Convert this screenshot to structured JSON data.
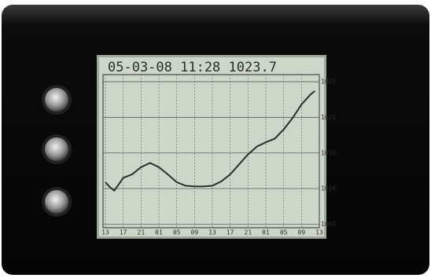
{
  "chart_data": {
    "type": "line",
    "title": "05-03-08 11:28 1023.7",
    "x": [
      0,
      1,
      2,
      4,
      6,
      8,
      10,
      12,
      14,
      16,
      18,
      20,
      22,
      24,
      26,
      28,
      30,
      32,
      34,
      36,
      38,
      40,
      42,
      44,
      46,
      47
    ],
    "series": [
      {
        "color": "#2a2f2a",
        "values": [
          1010.9,
          1010.2,
          1009.7,
          1011.5,
          1012,
          1013,
          1013.6,
          1013,
          1012,
          1010.9,
          1010.4,
          1010.3,
          1010.3,
          1010.4,
          1011,
          1012,
          1013.4,
          1014.8,
          1015.9,
          1016.5,
          1017,
          1018.3,
          1019.9,
          1021.8,
          1023.2,
          1023.7
        ]
      }
    ],
    "xlim": [
      0,
      48
    ],
    "xticks": [
      {
        "value": 0,
        "label": "13"
      },
      {
        "value": 4,
        "label": "17"
      },
      {
        "value": 8,
        "label": "21"
      },
      {
        "value": 12,
        "label": "01"
      },
      {
        "value": 16,
        "label": "05"
      },
      {
        "value": 20,
        "label": "09"
      },
      {
        "value": 24,
        "label": "13"
      },
      {
        "value": 28,
        "label": "17"
      },
      {
        "value": 32,
        "label": "21"
      },
      {
        "value": 36,
        "label": "01"
      },
      {
        "value": 40,
        "label": "05"
      },
      {
        "value": 44,
        "label": "09"
      },
      {
        "value": 48,
        "label": "13"
      }
    ],
    "ylim": [
      1004.5,
      1026
    ],
    "yticks": [
      1005,
      1010,
      1015,
      1020,
      1025
    ],
    "grid": true
  }
}
